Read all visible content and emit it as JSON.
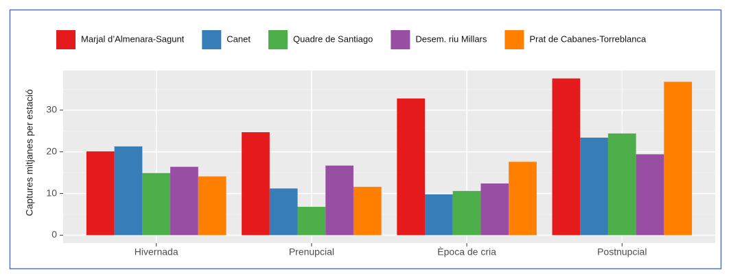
{
  "chart_data": {
    "type": "bar",
    "y_label": "Captures mitjanes per estació",
    "categories": [
      "Hivernada",
      "Prenupcial",
      "Època de cria",
      "Postnupcial"
    ],
    "series": [
      {
        "name": "Marjal d’Almenara-Sagunt",
        "color": "#e41a1c",
        "values": [
          20.1,
          24.7,
          32.8,
          37.6
        ]
      },
      {
        "name": "Canet",
        "color": "#377eb8",
        "values": [
          21.3,
          11.2,
          9.8,
          23.4
        ]
      },
      {
        "name": "Quadre de Santiago",
        "color": "#4daf4a",
        "values": [
          14.9,
          6.8,
          10.6,
          24.4
        ]
      },
      {
        "name": "Desem. riu Millars",
        "color": "#984ea3",
        "values": [
          16.4,
          16.7,
          12.4,
          19.4
        ]
      },
      {
        "name": "Prat de Cabanes-Torreblanca",
        "color": "#ff7f00",
        "values": [
          14.1,
          11.6,
          17.6,
          36.8
        ]
      }
    ],
    "ylim": [
      -1.9,
      39.5
    ],
    "yticks": [
      0,
      10,
      20,
      30
    ],
    "minor_yticks": [
      5,
      15,
      25,
      35
    ],
    "grid": true,
    "legend": "top"
  }
}
